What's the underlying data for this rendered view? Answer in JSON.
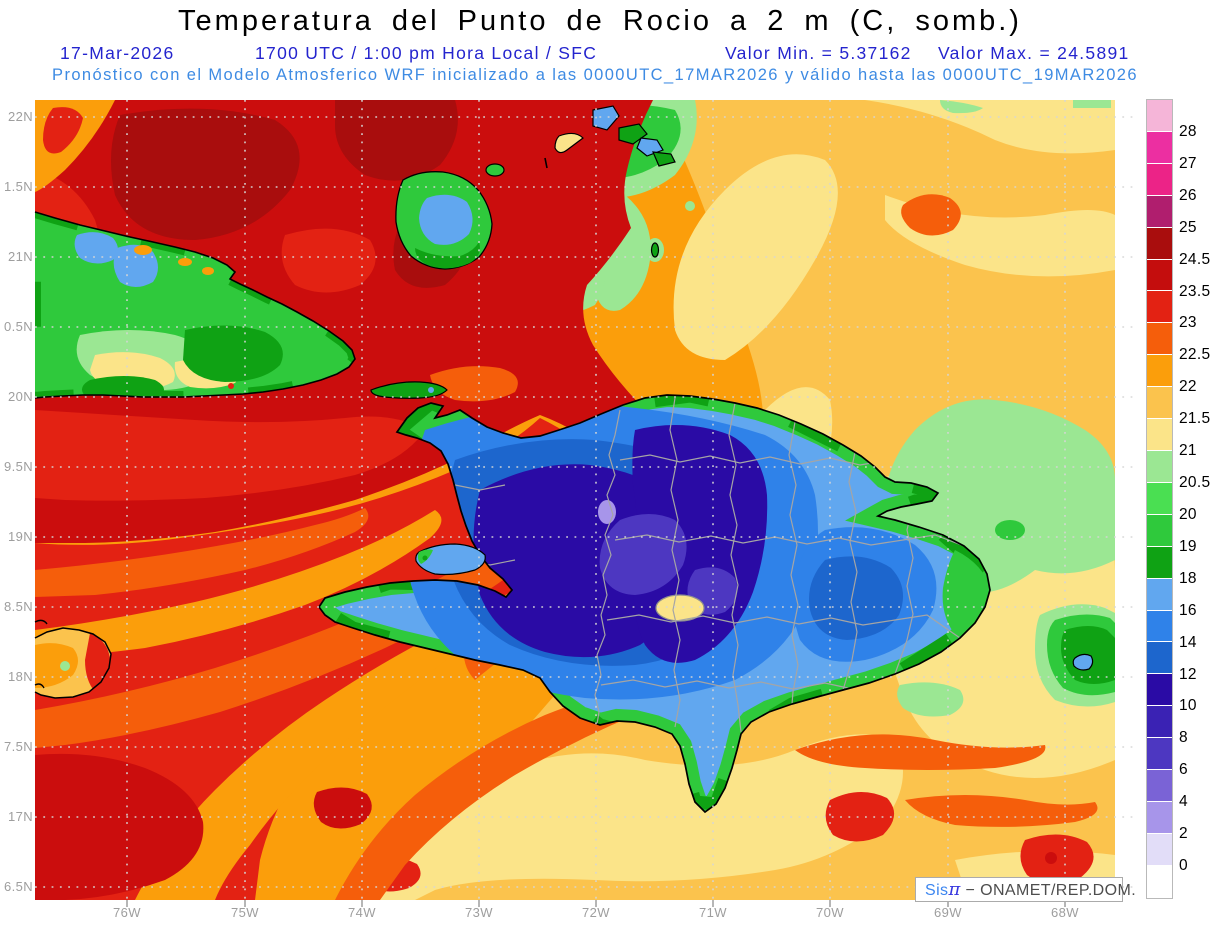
{
  "header": {
    "title": "Temperatura del Punto de Rocio a 2 m (C, somb.)",
    "date": "17-Mar-2026",
    "time_line": "1700 UTC / 1:00 pm Hora Local / SFC",
    "valor_min": "Valor Min. = 5.37162",
    "valor_max": "Valor Max. = 24.5891",
    "forecast_line": "Pronóstico con el Modelo Atmosferico WRF inicializado a las 0000UTC_17MAR2026 y válido hasta las  0000UTC_19MAR2026"
  },
  "axes": {
    "lat_labels": [
      "22N",
      "1.5N",
      "21N",
      "0.5N",
      "20N",
      "9.5N",
      "19N",
      "8.5N",
      "18N",
      "7.5N",
      "17N",
      "6.5N"
    ],
    "lon_labels": [
      "76W",
      "75W",
      "74W",
      "73W",
      "72W",
      "71W",
      "70W",
      "69W",
      "68W"
    ]
  },
  "colorbar": {
    "labels": [
      "28",
      "27",
      "26",
      "25",
      "24.5",
      "23.5",
      "23",
      "22.5",
      "22",
      "21.5",
      "21",
      "20.5",
      "20",
      "19",
      "18",
      "16",
      "14",
      "12",
      "10",
      "8",
      "6",
      "4",
      "2",
      "0"
    ],
    "colors": [
      "#F5B5D8",
      "#EC2FA1",
      "#EC2387",
      "#B01E6E",
      "#A90D0D",
      "#C40D0D",
      "#E32213",
      "#F55E0B",
      "#FB9E0B",
      "#FBC34D",
      "#FBE489",
      "#9BE793",
      "#4ADF52",
      "#2FC93C",
      "#0FA214",
      "#61A7EF",
      "#2F82E9",
      "#1D66CD",
      "#2A0BA5",
      "#3A22B4",
      "#4D37C1",
      "#7A63D6",
      "#A795EA",
      "#E2DDF8",
      "#FFFFFF"
    ]
  },
  "watermark": {
    "prefix": "Sis",
    "pi": "π",
    "suffix": " − ONAMET/REP.DOM."
  }
}
